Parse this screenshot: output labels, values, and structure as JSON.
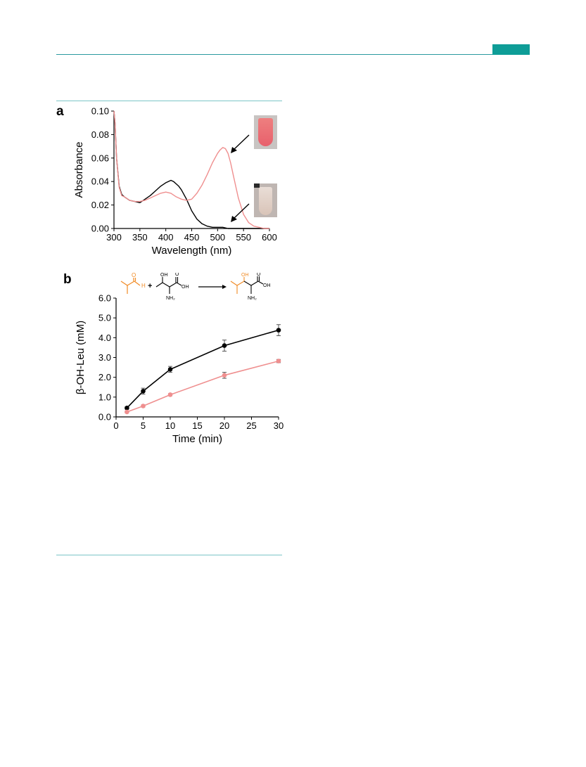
{
  "panel_labels": {
    "a": "a",
    "b": "b"
  },
  "colors": {
    "black_series": "#000000",
    "pink_series": "#ef8f8f",
    "orange_chem": "#f08a24",
    "teal": "#0e9d97"
  },
  "chart_data": [
    {
      "panel": "a",
      "type": "line",
      "xlabel": "Wavelength (nm)",
      "ylabel": "Absorbance",
      "xlim": [
        300,
        600
      ],
      "ylim": [
        0.0,
        0.1
      ],
      "xticks": [
        "300",
        "350",
        "400",
        "450",
        "500",
        "550",
        "600"
      ],
      "yticks": [
        "0.00",
        "0.02",
        "0.04",
        "0.06",
        "0.08",
        "0.10"
      ],
      "grid": false,
      "series": [
        {
          "color": "#000000",
          "x": [
            300,
            302,
            305,
            310,
            315,
            320,
            330,
            340,
            350,
            360,
            370,
            380,
            390,
            400,
            405,
            410,
            415,
            420,
            425,
            430,
            440,
            450,
            460,
            470,
            480,
            490,
            500,
            510,
            520,
            540,
            560,
            580,
            600
          ],
          "y": [
            0.1,
            0.09,
            0.06,
            0.036,
            0.029,
            0.027,
            0.024,
            0.023,
            0.022,
            0.025,
            0.028,
            0.032,
            0.036,
            0.039,
            0.04,
            0.041,
            0.04,
            0.038,
            0.036,
            0.033,
            0.025,
            0.015,
            0.008,
            0.004,
            0.002,
            0.001,
            0.001,
            0.001,
            0.0,
            0.0,
            0.0,
            0.0,
            0.0
          ]
        },
        {
          "color": "#ef8f8f",
          "x": [
            300,
            302,
            305,
            310,
            315,
            320,
            330,
            340,
            350,
            360,
            370,
            380,
            390,
            400,
            410,
            420,
            430,
            440,
            450,
            460,
            470,
            480,
            490,
            500,
            505,
            510,
            515,
            520,
            525,
            530,
            540,
            550,
            560,
            570,
            580,
            590,
            600
          ],
          "y": [
            0.1,
            0.09,
            0.06,
            0.035,
            0.028,
            0.027,
            0.024,
            0.023,
            0.023,
            0.024,
            0.026,
            0.028,
            0.03,
            0.031,
            0.03,
            0.027,
            0.025,
            0.024,
            0.025,
            0.03,
            0.037,
            0.046,
            0.056,
            0.064,
            0.067,
            0.069,
            0.068,
            0.064,
            0.056,
            0.046,
            0.026,
            0.012,
            0.005,
            0.002,
            0.001,
            0.0,
            0.0
          ]
        }
      ]
    },
    {
      "panel": "b",
      "type": "line",
      "xlabel": "Time (min)",
      "ylabel": "β-OH-Leu (mM)",
      "xlim": [
        0,
        30
      ],
      "ylim": [
        0.0,
        6.0
      ],
      "xticks": [
        "0",
        "5",
        "10",
        "15",
        "20",
        "25",
        "30"
      ],
      "yticks": [
        "0.0",
        "1.0",
        "2.0",
        "3.0",
        "4.0",
        "5.0",
        "6.0"
      ],
      "grid": false,
      "series": [
        {
          "color": "#000000",
          "x": [
            2,
            5,
            10,
            20,
            30
          ],
          "y": [
            0.45,
            1.3,
            2.4,
            3.6,
            4.38
          ],
          "err": [
            0.06,
            0.15,
            0.15,
            0.28,
            0.28
          ]
        },
        {
          "color": "#ef8f8f",
          "x": [
            2,
            5,
            10,
            20,
            30
          ],
          "y": [
            0.25,
            0.55,
            1.12,
            2.1,
            2.82
          ],
          "err": [
            0.04,
            0.05,
            0.05,
            0.15,
            0.08
          ]
        }
      ]
    }
  ],
  "scheme": {
    "plus": "+",
    "aldehyde_O": "O",
    "aldehyde_H": "H",
    "threonine_OH": "OH",
    "threonine_O": "O",
    "threonine_COOH": "OH",
    "threonine_NH2": "NH₂",
    "product_OH": "OH",
    "product_O": "O",
    "product_COOH": "OH",
    "product_NH2": "NH₂"
  }
}
